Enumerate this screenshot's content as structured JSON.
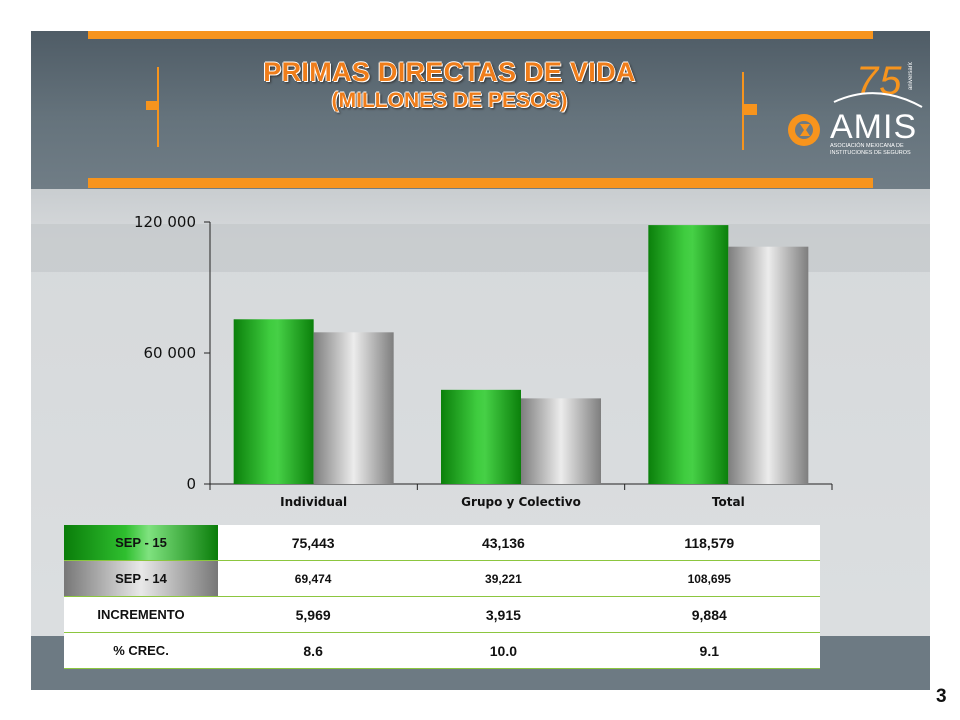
{
  "title": "PRIMAS DIRECTAS DE VIDA",
  "subtitle": "(MILLONES DE PESOS)",
  "page_number": "3",
  "logo": {
    "anniversary": "75",
    "anniversary_small": "aniversario",
    "name": "AMIS",
    "line1": "ASOCIACIÓN MEXICANA DE",
    "line2": "INSTITUCIONES DE SEGUROS"
  },
  "colors": {
    "accent_orange": "#f7941d",
    "series_current": "#119911",
    "series_previous": "#b5b5b5"
  },
  "chart_data": {
    "type": "bar",
    "categories": [
      "Individual",
      "Grupo y Colectivo",
      "Total"
    ],
    "series": [
      {
        "name": "SEP - 15",
        "values": [
          75443,
          43136,
          118579
        ]
      },
      {
        "name": "SEP - 14",
        "values": [
          69474,
          39221,
          108695
        ]
      }
    ],
    "yticks": [
      "0",
      "60 000",
      "120 000"
    ],
    "ytick_values": [
      0,
      60000,
      120000
    ],
    "ylim": [
      0,
      120000
    ],
    "grid": false,
    "legend": "none"
  },
  "table": {
    "rows": [
      {
        "label": "SEP - 15",
        "values": [
          "75,443",
          "43,136",
          "118,579"
        ]
      },
      {
        "label": "SEP - 14",
        "values": [
          "69,474",
          "39,221",
          "108,695"
        ]
      },
      {
        "label": "INCREMENTO",
        "values": [
          "5,969",
          "3,915",
          "9,884"
        ]
      },
      {
        "label": "% CREC.",
        "values": [
          "8.6",
          "10.0",
          "9.1"
        ]
      }
    ]
  }
}
